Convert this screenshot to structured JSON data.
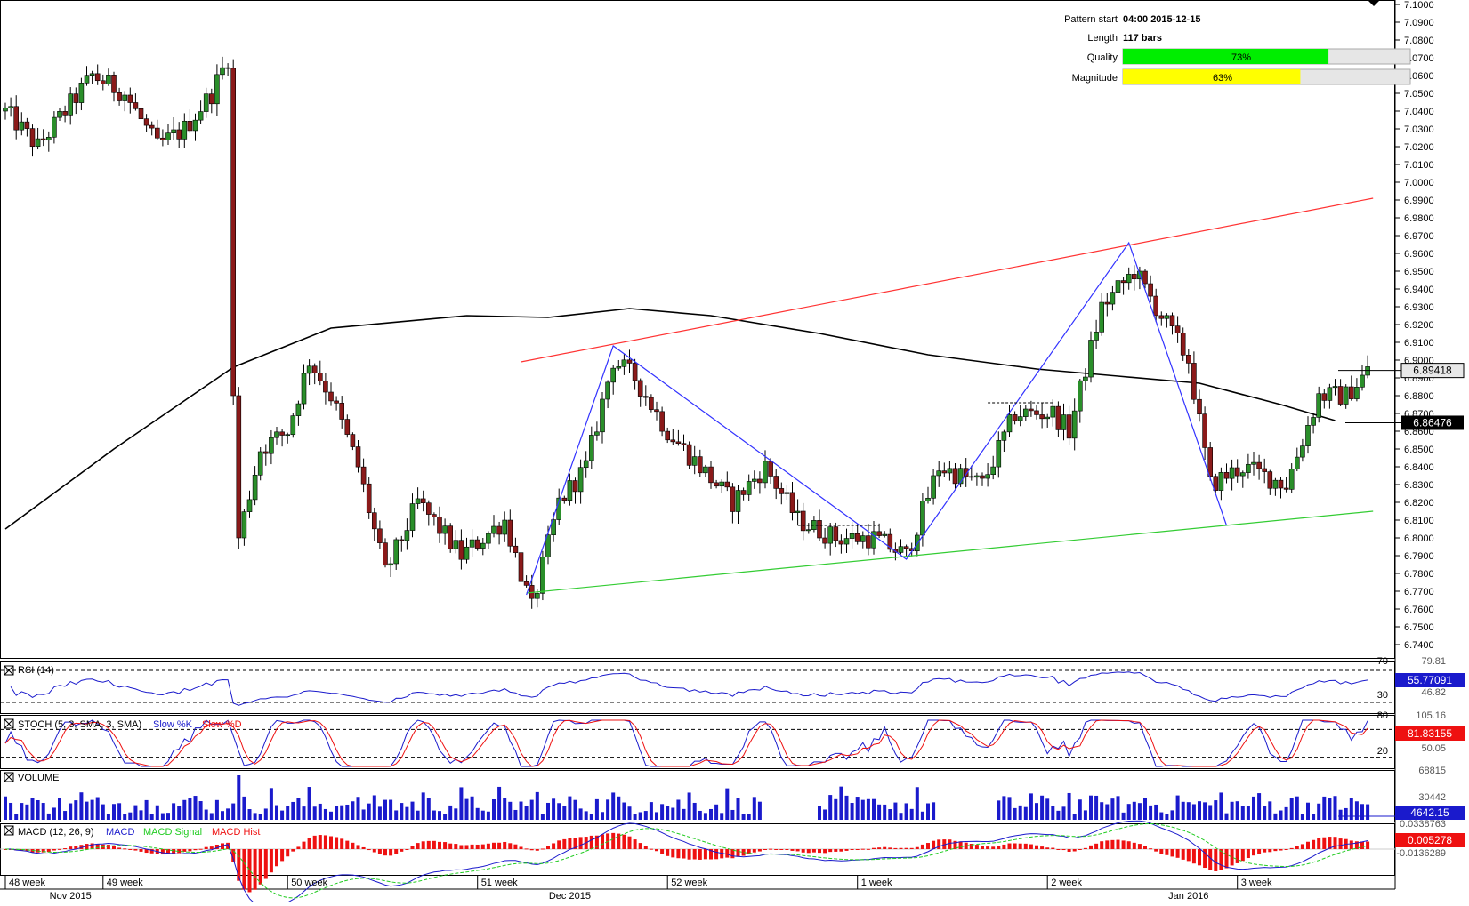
{
  "info_box": {
    "pattern_start_label": "Pattern start",
    "pattern_start_value": "04:00 2015-12-15",
    "length_label": "Length",
    "length_value": "117 bars",
    "quality_label": "Quality",
    "quality_text": "73%",
    "quality_pct": 73,
    "magnitude_label": "Magnitude",
    "magnitude_text": "63%",
    "magnitude_pct": 63
  },
  "colors": {
    "bull": "#2a8f2a",
    "bear": "#8b1a1a",
    "zigzag": "#3333ff",
    "resistance": "#ff3333",
    "support": "#33cc33",
    "ma": "#000000",
    "quality_fill": "#00ee00",
    "magnitude_fill": "#ffff00",
    "indicator_blue": "#1a1acc",
    "indicator_red": "#ee1111",
    "indicator_green": "#22cc22"
  },
  "chart_data": {
    "type": "candlestick",
    "symbol_scale": "price",
    "ylim": [
      6.735,
      7.1
    ],
    "y_ticks": [
      "7.1000",
      "7.0900",
      "7.0800",
      "7.0700",
      "7.0600",
      "7.0500",
      "7.0400",
      "7.0300",
      "7.0200",
      "7.0100",
      "7.0000",
      "6.9900",
      "6.9800",
      "6.9700",
      "6.9600",
      "6.9500",
      "6.9400",
      "6.9300",
      "6.9200",
      "6.9100",
      "6.9000",
      "6.8900",
      "6.8800",
      "6.8700",
      "6.8600",
      "6.8500",
      "6.8400",
      "6.8300",
      "6.8200",
      "6.8100",
      "6.8000",
      "6.7900",
      "6.7800",
      "6.7700",
      "6.7600",
      "6.7500",
      "6.7400"
    ],
    "current_price_label": "6.89418",
    "current_price": 6.89418,
    "ma_price_label": "6.86476",
    "ma_price": 6.86476,
    "bar_count": 252,
    "waypoints": [
      [
        0,
        7.04
      ],
      [
        6,
        7.02
      ],
      [
        16,
        7.06
      ],
      [
        22,
        7.05
      ],
      [
        28,
        7.02
      ],
      [
        33,
        7.03
      ],
      [
        38,
        7.05
      ],
      [
        41,
        7.07
      ],
      [
        42,
        6.88
      ],
      [
        43,
        6.8
      ],
      [
        47,
        6.85
      ],
      [
        52,
        6.86
      ],
      [
        56,
        6.9
      ],
      [
        60,
        6.88
      ],
      [
        65,
        6.84
      ],
      [
        70,
        6.78
      ],
      [
        76,
        6.82
      ],
      [
        84,
        6.79
      ],
      [
        92,
        6.81
      ],
      [
        97,
        6.76
      ],
      [
        102,
        6.82
      ],
      [
        107,
        6.84
      ],
      [
        112,
        6.9
      ],
      [
        116,
        6.89
      ],
      [
        122,
        6.86
      ],
      [
        128,
        6.84
      ],
      [
        134,
        6.82
      ],
      [
        140,
        6.84
      ],
      [
        146,
        6.81
      ],
      [
        153,
        6.8
      ],
      [
        160,
        6.8
      ],
      [
        166,
        6.79
      ],
      [
        172,
        6.84
      ],
      [
        180,
        6.83
      ],
      [
        186,
        6.87
      ],
      [
        193,
        6.87
      ],
      [
        196,
        6.86
      ],
      [
        202,
        6.93
      ],
      [
        208,
        6.95
      ],
      [
        214,
        6.92
      ],
      [
        218,
        6.9
      ],
      [
        222,
        6.83
      ],
      [
        228,
        6.84
      ],
      [
        236,
        6.83
      ],
      [
        242,
        6.88
      ],
      [
        247,
        6.88
      ],
      [
        251,
        6.894
      ]
    ],
    "moving_average": [
      [
        0,
        6.805
      ],
      [
        20,
        6.85
      ],
      [
        42,
        6.896
      ],
      [
        60,
        6.918
      ],
      [
        85,
        6.925
      ],
      [
        100,
        6.924
      ],
      [
        115,
        6.929
      ],
      [
        130,
        6.925
      ],
      [
        150,
        6.915
      ],
      [
        170,
        6.903
      ],
      [
        190,
        6.895
      ],
      [
        205,
        6.891
      ],
      [
        220,
        6.887
      ],
      [
        235,
        6.875
      ],
      [
        245,
        6.866
      ]
    ],
    "zigzag": [
      [
        96,
        6.768
      ],
      [
        112,
        6.908
      ],
      [
        166,
        6.788
      ],
      [
        207,
        6.966
      ],
      [
        225,
        6.807
      ]
    ],
    "resistance_line": [
      [
        95,
        6.899
      ],
      [
        252,
        6.991
      ]
    ],
    "support_line": [
      [
        96,
        6.769
      ],
      [
        252,
        6.815
      ]
    ],
    "dashed_segments": [
      [
        [
          146,
          6.807
        ],
        [
          161,
          6.807
        ]
      ],
      [
        [
          181,
          6.876
        ],
        [
          193,
          6.876
        ]
      ]
    ],
    "x_week_labels": [
      "48 week",
      "49 week",
      "50 week",
      "51 week",
      "52 week",
      "1 week",
      "2 week",
      "3 week"
    ],
    "x_week_bars": [
      0,
      18,
      52,
      87,
      122,
      157,
      192,
      227
    ],
    "x_month_labels": [
      "Nov 2015",
      "Dec 2015",
      "Jan 2016"
    ],
    "x_month_bars": [
      12,
      104,
      218
    ],
    "indicators": {
      "rsi": {
        "title": "RSI (14)",
        "value_label": "55.77091",
        "scale_top": "79.81",
        "scale_mid": "46.82",
        "level_high": "70",
        "level_low": "30"
      },
      "stoch": {
        "title": "STOCH (5, 3, SMA, 3, SMA)",
        "legend_k": "Slow %K",
        "legend_d": "Slow %D",
        "value_label": "81.83155",
        "scale_top": "105.16",
        "scale_mid": "50.05",
        "level_high": "80",
        "level_low": "20"
      },
      "volume": {
        "title": "VOLUME",
        "value_label": "4642.15",
        "scale_top": "68815",
        "scale_mid": "30442"
      },
      "macd": {
        "title": "MACD (12, 26, 9)",
        "legend_macd": "MACD",
        "legend_signal": "MACD Signal",
        "legend_hist": "MACD Hist",
        "value_label": "0.005278",
        "scale_top": "0.0338763",
        "scale_bottom": "-0.0136289"
      }
    }
  }
}
